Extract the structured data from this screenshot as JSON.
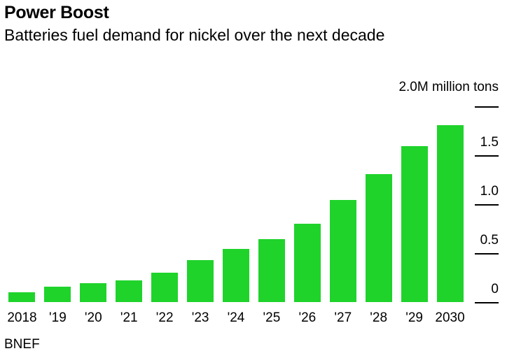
{
  "header": {
    "title": "Power Boost",
    "subtitle": "Batteries fuel demand for nickel over the next decade"
  },
  "chart_data": {
    "type": "bar",
    "title": "Power Boost",
    "subtitle": "Batteries fuel demand for nickel over the next decade",
    "unit_label": "2.0M million tons",
    "source": "BNEF",
    "categories": [
      "2018",
      "'19",
      "'20",
      "'21",
      "'22",
      "'23",
      "'24",
      "'25",
      "'26",
      "'27",
      "'28",
      "'29",
      "2030"
    ],
    "values": [
      0.1,
      0.16,
      0.19,
      0.22,
      0.3,
      0.43,
      0.54,
      0.64,
      0.8,
      1.04,
      1.31,
      1.59,
      1.81
    ],
    "ylabel": "million tons",
    "ylim": [
      0,
      2.0
    ],
    "y_ticks": [
      {
        "value": 0,
        "label": "0"
      },
      {
        "value": 0.5,
        "label": "0.5"
      },
      {
        "value": 1.0,
        "label": "1.0"
      },
      {
        "value": 1.5,
        "label": "1.5"
      },
      {
        "value": 2.0,
        "label": ""
      }
    ],
    "grid": false,
    "legend": "none",
    "axis_side": "right",
    "bar_color": "#1fd32b",
    "tick_color": "#000000"
  }
}
